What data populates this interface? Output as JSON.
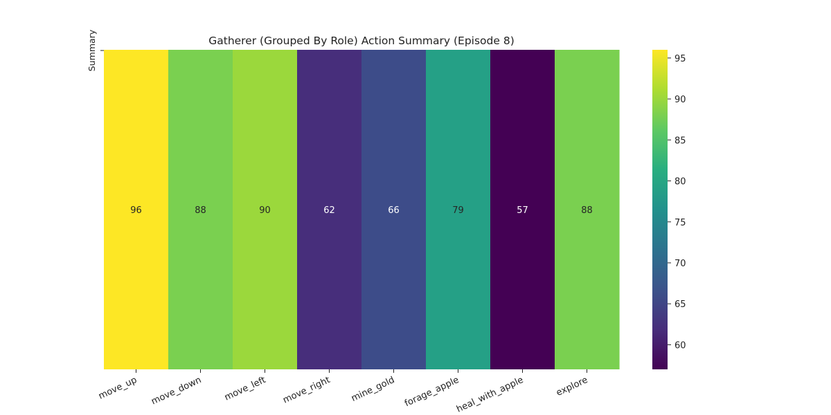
{
  "chart_data": {
    "type": "heatmap",
    "title": "Gatherer (Grouped By Role) Action Summary (Episode 8)",
    "ylabel": "Summary",
    "xlabel": "",
    "categories": [
      "move_up",
      "move_down",
      "move_left",
      "move_right",
      "mine_gold",
      "forage_apple",
      "heal_with_apple",
      "explore"
    ],
    "rows": [
      ""
    ],
    "series": [
      {
        "values": [
          96,
          88,
          90,
          62,
          66,
          79,
          57,
          88
        ]
      }
    ],
    "colorbar": {
      "colormap": "viridis",
      "range": [
        57,
        96
      ],
      "ticks": [
        60,
        65,
        70,
        75,
        80,
        85,
        90,
        95
      ]
    },
    "annotations": "cell values shown"
  }
}
